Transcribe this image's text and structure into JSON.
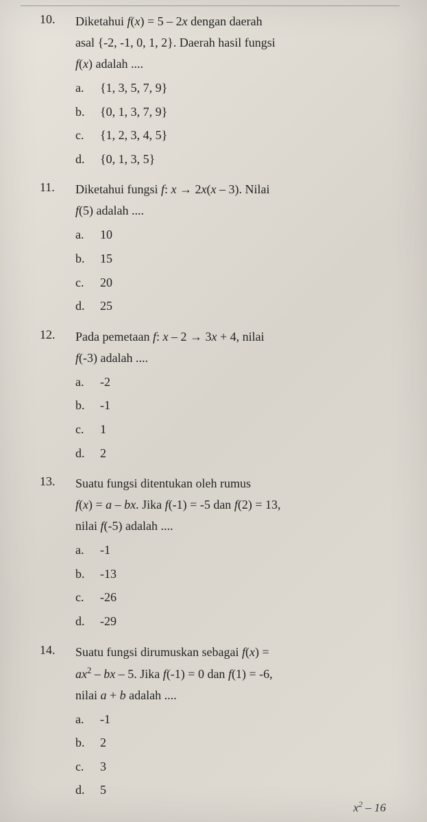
{
  "questions": [
    {
      "number": "10.",
      "lines": [
        "Diketahui <span class='italic'>f</span>(<span class='italic'>x</span>) = 5 – 2<span class='italic'>x</span> dengan daerah",
        "asal {-2, -1, 0, 1, 2}. Daerah hasil fungsi",
        "<span class='italic'>f</span>(<span class='italic'>x</span>) adalah ...."
      ],
      "options": [
        {
          "letter": "a.",
          "text": "{1, 3, 5, 7, 9}"
        },
        {
          "letter": "b.",
          "text": "{0, 1, 3, 7, 9}"
        },
        {
          "letter": "c.",
          "text": "{1, 2, 3, 4, 5}"
        },
        {
          "letter": "d.",
          "text": "{0, 1, 3, 5}"
        }
      ]
    },
    {
      "number": "11.",
      "lines": [
        "Diketahui fungsi <span class='italic'>f</span>: <span class='italic'>x</span> → 2<span class='italic'>x</span>(<span class='italic'>x</span> – 3). Nilai",
        "<span class='italic'>f</span>(5) adalah ...."
      ],
      "options": [
        {
          "letter": "a.",
          "text": "10"
        },
        {
          "letter": "b.",
          "text": "15"
        },
        {
          "letter": "c.",
          "text": "20"
        },
        {
          "letter": "d.",
          "text": "25"
        }
      ]
    },
    {
      "number": "12.",
      "lines": [
        "Pada pemetaan <span class='italic'>f</span>: <span class='italic'>x</span> – 2 → 3<span class='italic'>x</span> + 4, nilai",
        "<span class='italic'>f</span>(-3) adalah ...."
      ],
      "options": [
        {
          "letter": "a.",
          "text": "-2"
        },
        {
          "letter": "b.",
          "text": "-1"
        },
        {
          "letter": "c.",
          "text": "1"
        },
        {
          "letter": "d.",
          "text": "2"
        }
      ]
    },
    {
      "number": "13.",
      "lines": [
        "Suatu fungsi ditentukan oleh rumus",
        "<span class='italic'>f</span>(<span class='italic'>x</span>) = <span class='italic'>a</span> – <span class='italic'>bx</span>. Jika <span class='italic'>f</span>(-1) = -5 dan <span class='italic'>f</span>(2) = 13,",
        "nilai <span class='italic'>f</span>(-5) adalah ...."
      ],
      "options": [
        {
          "letter": "a.",
          "text": "-1"
        },
        {
          "letter": "b.",
          "text": "-13"
        },
        {
          "letter": "c.",
          "text": "-26"
        },
        {
          "letter": "d.",
          "text": "-29"
        }
      ]
    },
    {
      "number": "14.",
      "lines": [
        "Suatu fungsi dirumuskan sebagai <span class='italic'>f</span>(<span class='italic'>x</span>) =",
        "<span class='italic'>ax</span><sup>2</sup> – <span class='italic'>bx</span> – 5. Jika <span class='italic'>f</span>(-1) = 0 dan <span class='italic'>f</span>(1) = -6,",
        "nilai <span class='italic'>a</span> + <span class='italic'>b</span> adalah ...."
      ],
      "options": [
        {
          "letter": "a.",
          "text": "-1"
        },
        {
          "letter": "b.",
          "text": "2"
        },
        {
          "letter": "c.",
          "text": "3"
        },
        {
          "letter": "d.",
          "text": "5"
        }
      ]
    }
  ],
  "bottom_fragment": "x<sup>2</sup> – 16",
  "colors": {
    "page_bg": "#d4d0c8",
    "text": "#222222"
  }
}
